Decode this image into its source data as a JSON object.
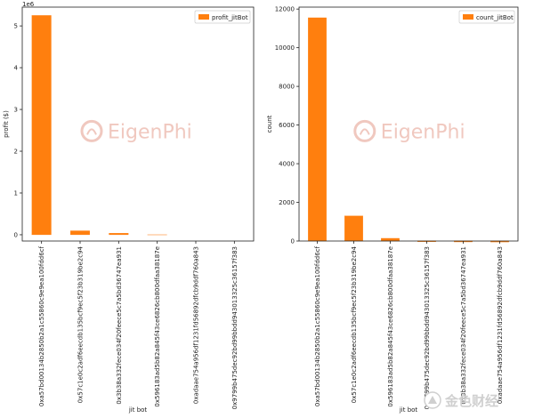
{
  "chart_data": [
    {
      "type": "bar",
      "categories": [
        "0xa57bd00134b2850b2a1c55860c9e9ea100fdd6cf",
        "0x57c1e0c2adf6eecdb135bcf9ec5f23b319be2c94",
        "0x3b38a332fece034f20feece5c7a5bd36747ea931",
        "0x596183ad5b82a845f43ce6826cb800dfaa38187e",
        "0xadaae754a956df1231fd56892dfcb9ddf760a843",
        "0x9799b475dec92bd99bbdd943013325c36157f383"
      ],
      "series": [
        {
          "name": "profit_jitBot",
          "values": [
            5250000,
            95000,
            38000,
            12000,
            0,
            0
          ]
        }
      ],
      "xlabel": "jit bot",
      "ylabel": "profit ($)",
      "ylim": [
        -150000,
        5450000
      ],
      "yticks": [
        0,
        1,
        2,
        3,
        4,
        5
      ],
      "scale_label": "1e6",
      "bar_colors": [
        "#ff7f0e",
        "#ff7f0e",
        "#ff7f0e",
        "#ffd2ad",
        "#ff7f0e",
        "#ff7f0e"
      ],
      "legend": "top-right",
      "grid": false
    },
    {
      "type": "bar",
      "categories": [
        "0xa57bd00134b2850b2a1c55860c9e9ea100fdd6cf",
        "0x57c1e0c2adf6eecdb135bcf9ec5f23b319be2c94",
        "0x596183ad5b82a845f43ce6826cb800dfaa38187e",
        "0x9799b475dec92bd99bbdd943013325c36157f383",
        "0x3b38a332fece034f20feece5c7a5bd36747ea931",
        "0xadaae754a956df1231fd56892dfcb9ddf760a843"
      ],
      "series": [
        {
          "name": "count_jitBot",
          "values": [
            11550,
            1300,
            140,
            15,
            8,
            4
          ]
        }
      ],
      "xlabel": "jit bot",
      "ylabel": "count",
      "ylim": [
        0,
        12100
      ],
      "yticks": [
        0,
        2000,
        4000,
        6000,
        8000,
        10000,
        12000
      ],
      "bar_colors": [
        "#ff7f0e",
        "#ff7f0e",
        "#ff7f0e",
        "#ff7f0e",
        "#ff7f0e",
        "#ff7f0e"
      ],
      "legend": "top-right",
      "grid": false
    }
  ],
  "watermark": {
    "text": "EigenPhi",
    "color": "#f0c8bf"
  },
  "corner_badge": {
    "text": "金色财经"
  }
}
